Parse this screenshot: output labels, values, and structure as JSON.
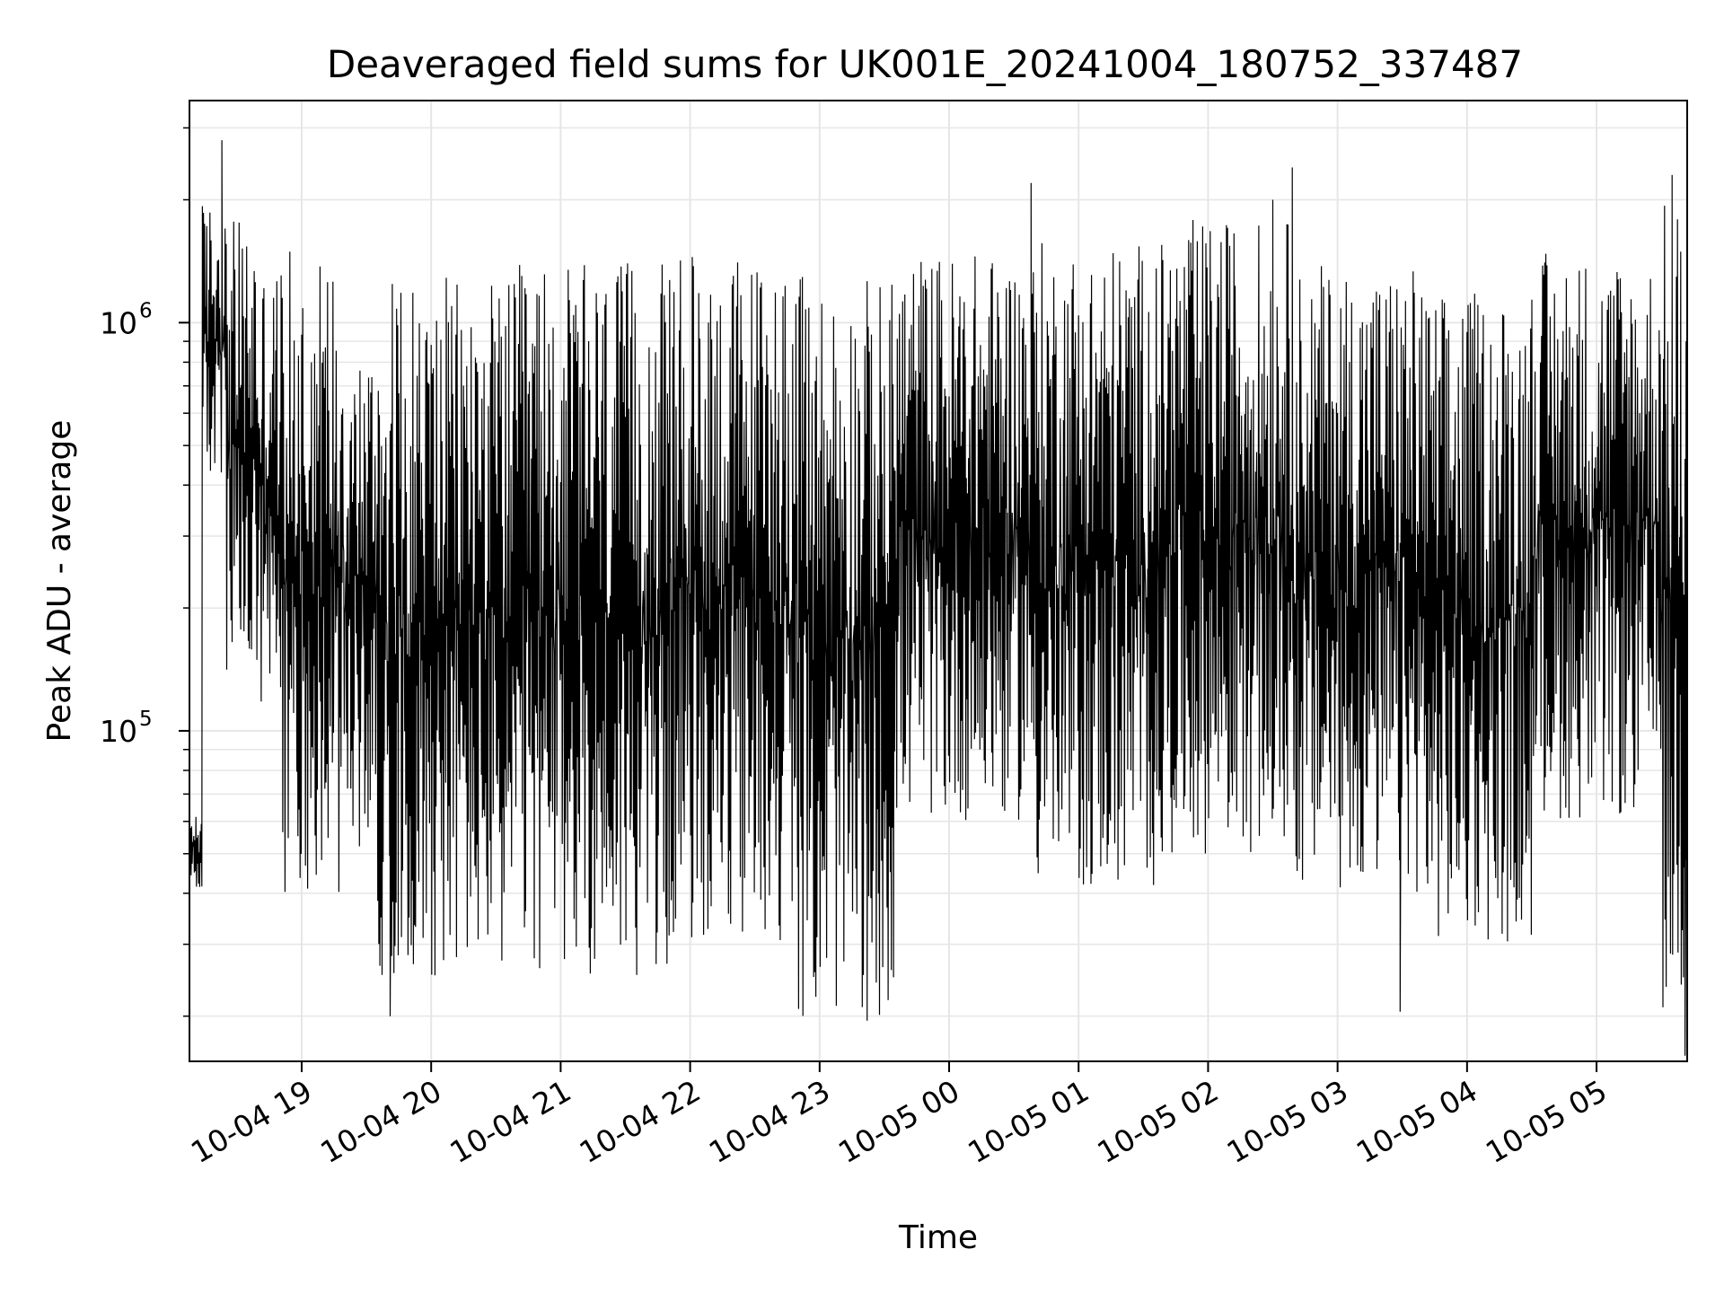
{
  "chart_data": {
    "type": "line",
    "title": "Deaveraged field sums for UK001E_20241004_180752_337487",
    "xlabel": "Time",
    "ylabel": "Peak ADU - average",
    "yscale": "log",
    "ylim": [
      15500,
      3500000
    ],
    "xlim": [
      "2024-10-04 18:08",
      "2024-10-05 05:42"
    ],
    "grid": true,
    "line_color": "#000000",
    "x_ticks": [
      "10-04 19",
      "10-04 20",
      "10-04 21",
      "10-04 22",
      "10-04 23",
      "10-05 00",
      "10-05 01",
      "10-05 02",
      "10-05 03",
      "10-05 04",
      "10-05 05"
    ],
    "y_ticks": [
      {
        "base": "10",
        "exp": "5",
        "value": 100000
      },
      {
        "base": "10",
        "exp": "6",
        "value": 1000000
      }
    ],
    "series": [
      {
        "segments": [
          {
            "start": "2024-10-04 18:08",
            "end": "2024-10-04 18:14",
            "low": 40000,
            "high": 65000
          },
          {
            "start": "2024-10-04 18:14",
            "end": "2024-10-04 18:25",
            "low": 400000,
            "high": 2000000
          },
          {
            "start": "2024-10-04 18:25",
            "end": "2024-10-04 18:40",
            "low": 120000,
            "high": 1800000
          },
          {
            "start": "2024-10-04 18:40",
            "end": "2024-10-04 18:50",
            "low": 90000,
            "high": 1400000
          },
          {
            "start": "2024-10-04 18:50",
            "end": "2024-10-04 19:20",
            "low": 40000,
            "high": 1500000
          },
          {
            "start": "2024-10-04 19:20",
            "end": "2024-10-04 19:35",
            "low": 50000,
            "high": 900000
          },
          {
            "start": "2024-10-04 19:35",
            "end": "2024-10-04 20:40",
            "low": 25000,
            "high": 1300000
          },
          {
            "start": "2024-10-04 20:40",
            "end": "2024-10-04 21:50",
            "low": 25000,
            "high": 1400000
          },
          {
            "start": "2024-10-04 21:50",
            "end": "2024-10-04 22:50",
            "low": 30000,
            "high": 1500000
          },
          {
            "start": "2024-10-04 22:50",
            "end": "2024-10-04 23:35",
            "low": 20000,
            "high": 1300000
          },
          {
            "start": "2024-10-04 23:35",
            "end": "2024-10-05 00:40",
            "low": 60000,
            "high": 1500000
          },
          {
            "start": "2024-10-05 00:40",
            "end": "2024-10-05 01:40",
            "low": 40000,
            "high": 1600000
          },
          {
            "start": "2024-10-05 01:40",
            "end": "2024-10-05 02:40",
            "low": 50000,
            "high": 1800000
          },
          {
            "start": "2024-10-05 02:40",
            "end": "2024-10-05 03:40",
            "low": 40000,
            "high": 1400000
          },
          {
            "start": "2024-10-05 03:40",
            "end": "2024-10-05 04:30",
            "low": 30000,
            "high": 1200000
          },
          {
            "start": "2024-10-05 04:30",
            "end": "2024-10-05 05:30",
            "low": 60000,
            "high": 1500000
          },
          {
            "start": "2024-10-05 05:30",
            "end": "2024-10-05 05:42",
            "low": 20000,
            "high": 2000000
          }
        ],
        "spikes": [
          {
            "time": "2024-10-04 18:23",
            "value": 2800000
          },
          {
            "time": "2024-10-05 00:38",
            "value": 2200000
          },
          {
            "time": "2024-10-05 02:39",
            "value": 2400000
          },
          {
            "time": "2024-10-05 05:35",
            "value": 2300000
          },
          {
            "time": "2024-10-05 02:30",
            "value": 2000000
          }
        ],
        "dips": [
          {
            "time": "2024-10-04 19:41",
            "value": 20000
          },
          {
            "time": "2024-10-04 23:22",
            "value": 19500
          },
          {
            "time": "2024-10-05 03:29",
            "value": 20500
          },
          {
            "time": "2024-10-05 05:41",
            "value": 16000
          }
        ]
      }
    ]
  }
}
